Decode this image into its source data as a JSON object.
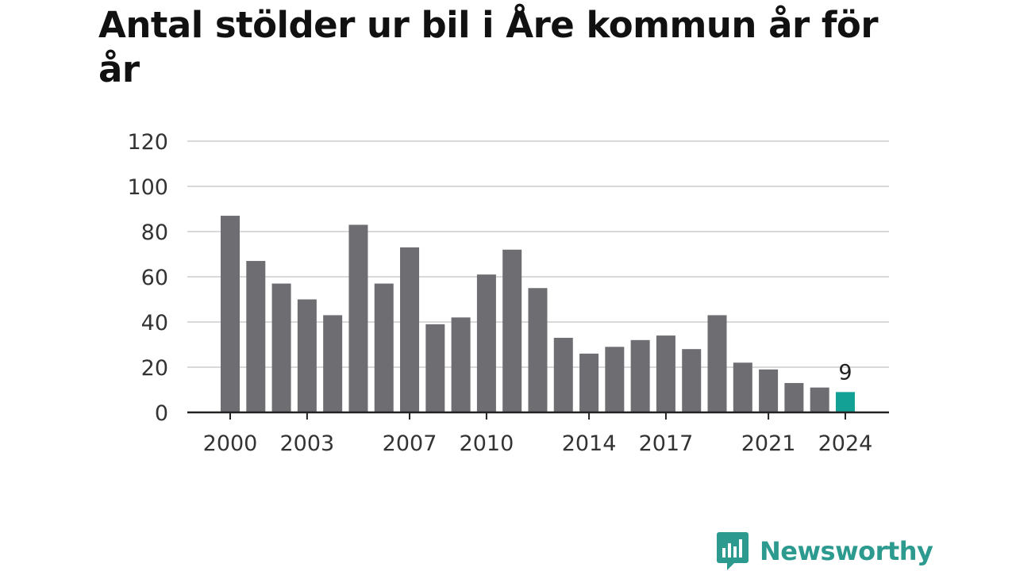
{
  "chart_data": {
    "type": "bar",
    "title": "Antal stölder ur bil i Åre kommun år för år",
    "xlabel": "",
    "ylabel": "",
    "categories": [
      "2000",
      "2001",
      "2002",
      "2003",
      "2004",
      "2005",
      "2006",
      "2007",
      "2008",
      "2009",
      "2010",
      "2011",
      "2012",
      "2013",
      "2014",
      "2015",
      "2016",
      "2017",
      "2018",
      "2019",
      "2020",
      "2021",
      "2022",
      "2023",
      "2024"
    ],
    "values": [
      87,
      67,
      57,
      50,
      43,
      83,
      57,
      73,
      39,
      42,
      61,
      72,
      55,
      33,
      26,
      29,
      32,
      34,
      28,
      43,
      22,
      19,
      13,
      11,
      9
    ],
    "x_tick_labels": [
      "2000",
      "2003",
      "2007",
      "2010",
      "2014",
      "2017",
      "2021",
      "2024"
    ],
    "y_ticks": [
      0,
      20,
      40,
      60,
      80,
      100,
      120
    ],
    "ylim": [
      0,
      120
    ],
    "grid": true,
    "legend": "none",
    "highlight": {
      "category": "2024",
      "label": "9"
    },
    "colors": {
      "bar": "#6e6d72",
      "highlight": "#12a194",
      "grid": "#d9d9d9",
      "axis": "#222222"
    }
  },
  "branding": {
    "name": "Newsworthy",
    "icon": "newsworthy-logo-icon",
    "color": "#2c9a8e"
  }
}
